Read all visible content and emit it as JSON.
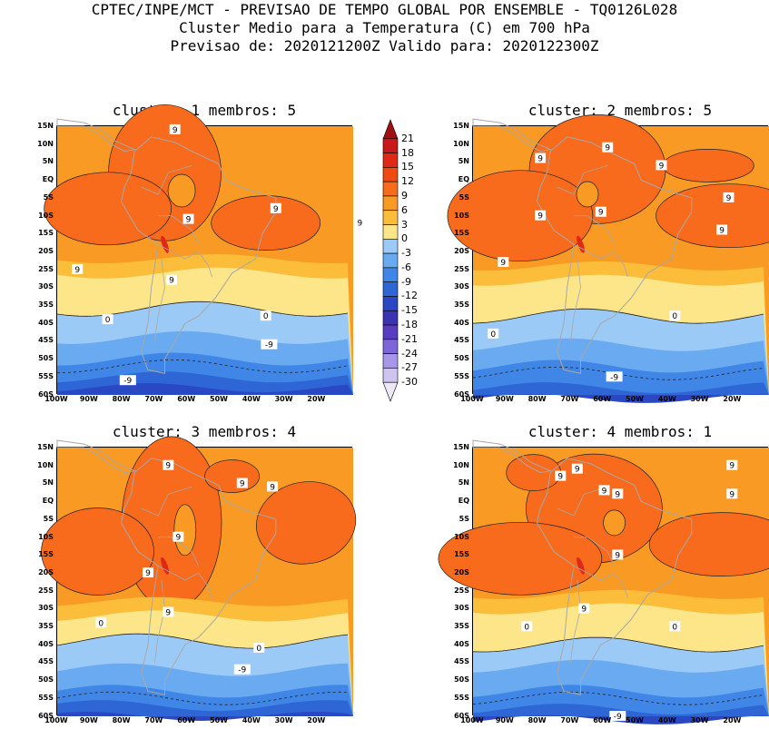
{
  "header": {
    "line1": "CPTEC/INPE/MCT - PREVISAO DE TEMPO GLOBAL POR ENSEMBLE - TQ0126L028",
    "line2": "Cluster Medio para a Temperatura (C) em 700 hPa",
    "line3": "Previsao de: 2020121200Z   Valido para: 2020122300Z"
  },
  "panels": [
    {
      "title": "cluster: 1  membros: 5"
    },
    {
      "title": "cluster: 2  membros: 5"
    },
    {
      "title": "cluster: 3  membros: 4"
    },
    {
      "title": "cluster: 4  membros: 1"
    }
  ],
  "lat_labels": [
    "15N",
    "10N",
    "5N",
    "EQ",
    "5S",
    "10S",
    "15S",
    "20S",
    "25S",
    "30S",
    "35S",
    "40S",
    "45S",
    "50S",
    "55S",
    "60S"
  ],
  "lon_labels": [
    "100W",
    "90W",
    "80W",
    "70W",
    "60W",
    "50W",
    "40W",
    "30W",
    "20W"
  ],
  "colorbar": {
    "labels": [
      "21",
      "18",
      "15",
      "12",
      "9",
      "6",
      "3",
      "0",
      "-3",
      "-6",
      "-9",
      "-12",
      "-15",
      "-18",
      "-21",
      "-24",
      "-27",
      "-30"
    ],
    "colors": [
      "#a01010",
      "#c81818",
      "#e02818",
      "#f04a14",
      "#f86a1c",
      "#f89a24",
      "#fbbd3a",
      "#fde68a",
      "#9ccaf6",
      "#6aaaf0",
      "#3f86e6",
      "#2f66d6",
      "#2b48c4",
      "#3a34b0",
      "#5a3cc0",
      "#7e66d8",
      "#a896e6",
      "#cfc4f0",
      "#ece8f8"
    ]
  },
  "contour_labels": {
    "panel1": [
      "9",
      "9",
      "9",
      "9",
      "9",
      "0",
      "0",
      "-9",
      "-9"
    ],
    "panel2": [
      "9",
      "9",
      "9",
      "9",
      "9",
      "9",
      "9",
      "9",
      "0",
      "0",
      "-9"
    ],
    "panel3": [
      "9",
      "9",
      "9",
      "9",
      "9",
      "9",
      "0",
      "0",
      "-9"
    ],
    "panel4": [
      "9",
      "9",
      "9",
      "9",
      "9",
      "9",
      "9",
      "9",
      "0",
      "0",
      "-9"
    ]
  }
}
